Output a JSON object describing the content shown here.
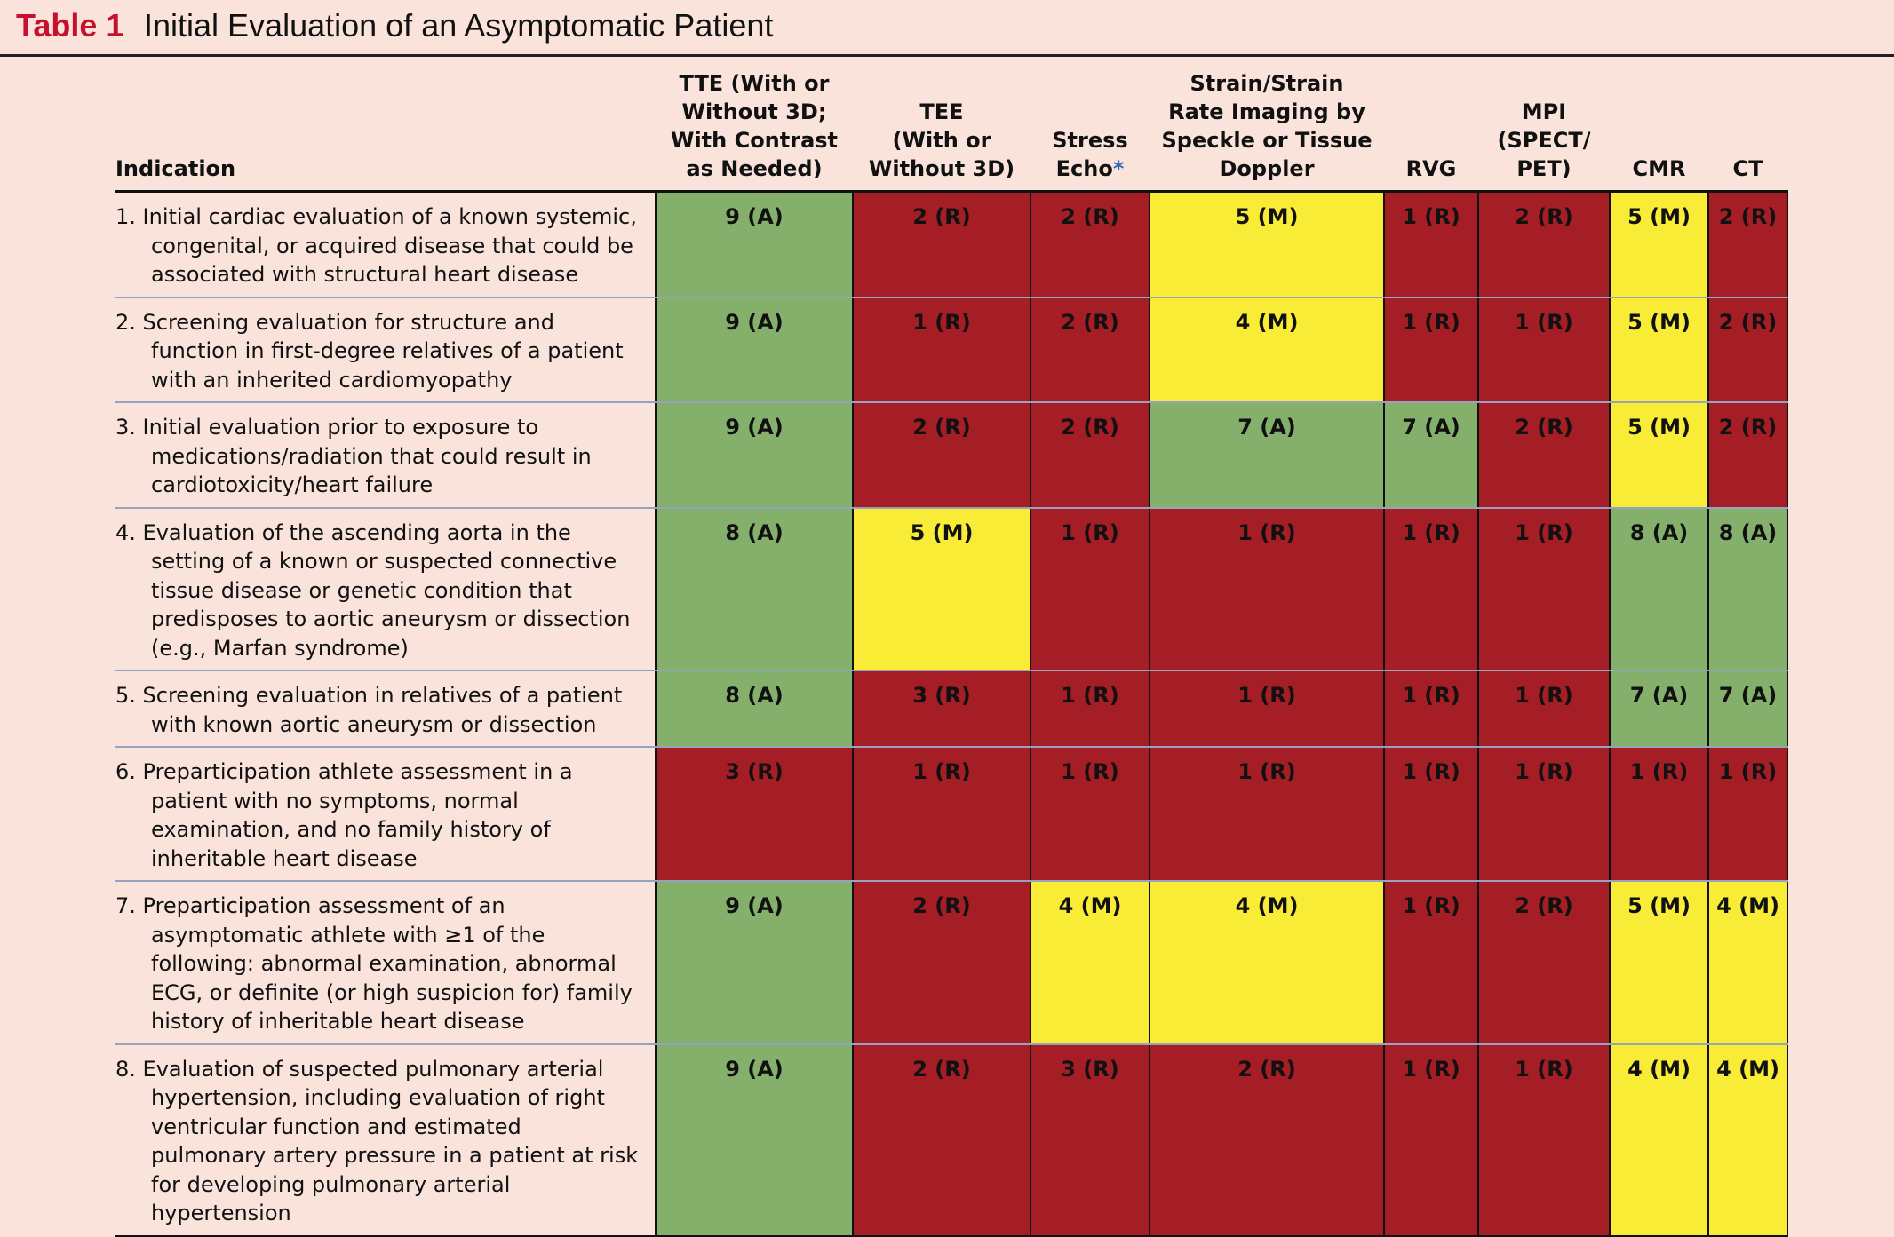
{
  "title": {
    "label": "Table 1",
    "text": "Initial Evaluation of an Asymptomatic Patient"
  },
  "colors": {
    "A": "#84b06c",
    "M": "#f8ec37",
    "R": "#a51d25",
    "title_red": "#c8102e",
    "background": "#fae3db"
  },
  "columns": {
    "indication": "Indication",
    "tte": [
      "TTE (With or",
      "Without 3D;",
      "With Contrast",
      "as Needed)"
    ],
    "tee": [
      "TEE",
      "(With or",
      "Without 3D)"
    ],
    "stress": [
      "Stress",
      "Echo"
    ],
    "stress_mark": "*",
    "strain": [
      "Strain/Strain",
      "Rate Imaging by",
      "Speckle or Tissue",
      "Doppler"
    ],
    "rvg": "RVG",
    "mpi": [
      "MPI",
      "(SPECT/",
      "PET)"
    ],
    "cmr": "CMR",
    "ct": "CT"
  },
  "rows": [
    {
      "indication": "1. Initial cardiac evaluation of a known systemic, congenital, or acquired disease that could be associated with structural heart disease",
      "ratings": [
        {
          "text": "9 (A)",
          "cat": "A"
        },
        {
          "text": "2 (R)",
          "cat": "R"
        },
        {
          "text": "2 (R)",
          "cat": "R"
        },
        {
          "text": "5 (M)",
          "cat": "M"
        },
        {
          "text": "1 (R)",
          "cat": "R"
        },
        {
          "text": "2 (R)",
          "cat": "R"
        },
        {
          "text": "5 (M)",
          "cat": "M"
        },
        {
          "text": "2 (R)",
          "cat": "R"
        }
      ]
    },
    {
      "indication": "2. Screening evaluation for structure and function in first-degree relatives of a patient with an inherited cardiomyopathy",
      "ratings": [
        {
          "text": "9 (A)",
          "cat": "A"
        },
        {
          "text": "1 (R)",
          "cat": "R"
        },
        {
          "text": "2 (R)",
          "cat": "R"
        },
        {
          "text": "4 (M)",
          "cat": "M"
        },
        {
          "text": "1 (R)",
          "cat": "R"
        },
        {
          "text": "1 (R)",
          "cat": "R"
        },
        {
          "text": "5 (M)",
          "cat": "M"
        },
        {
          "text": "2 (R)",
          "cat": "R"
        }
      ]
    },
    {
      "indication": "3. Initial evaluation prior to exposure to medications/radiation that could result in cardiotoxicity/heart failure",
      "ratings": [
        {
          "text": "9 (A)",
          "cat": "A"
        },
        {
          "text": "2 (R)",
          "cat": "R"
        },
        {
          "text": "2 (R)",
          "cat": "R"
        },
        {
          "text": "7 (A)",
          "cat": "A"
        },
        {
          "text": "7 (A)",
          "cat": "A"
        },
        {
          "text": "2 (R)",
          "cat": "R"
        },
        {
          "text": "5 (M)",
          "cat": "M"
        },
        {
          "text": "2 (R)",
          "cat": "R"
        }
      ]
    },
    {
      "indication": "4. Evaluation of the ascending aorta in the setting of a known or suspected connective tissue disease or genetic condition that predisposes to aortic aneurysm or dissection (e.g., Marfan syndrome)",
      "ratings": [
        {
          "text": "8 (A)",
          "cat": "A"
        },
        {
          "text": "5 (M)",
          "cat": "M"
        },
        {
          "text": "1 (R)",
          "cat": "R"
        },
        {
          "text": "1 (R)",
          "cat": "R"
        },
        {
          "text": "1 (R)",
          "cat": "R"
        },
        {
          "text": "1 (R)",
          "cat": "R"
        },
        {
          "text": "8 (A)",
          "cat": "A"
        },
        {
          "text": "8 (A)",
          "cat": "A"
        }
      ]
    },
    {
      "indication": "5. Screening evaluation in relatives of a patient with known aortic aneurysm or dissection",
      "ratings": [
        {
          "text": "8 (A)",
          "cat": "A"
        },
        {
          "text": "3 (R)",
          "cat": "R"
        },
        {
          "text": "1 (R)",
          "cat": "R"
        },
        {
          "text": "1 (R)",
          "cat": "R"
        },
        {
          "text": "1 (R)",
          "cat": "R"
        },
        {
          "text": "1 (R)",
          "cat": "R"
        },
        {
          "text": "7 (A)",
          "cat": "A"
        },
        {
          "text": "7 (A)",
          "cat": "A"
        }
      ]
    },
    {
      "indication": "6. Preparticipation athlete assessment in a patient with no symptoms, normal examination, and no family history of inheritable heart disease",
      "ratings": [
        {
          "text": "3 (R)",
          "cat": "R"
        },
        {
          "text": "1 (R)",
          "cat": "R"
        },
        {
          "text": "1 (R)",
          "cat": "R"
        },
        {
          "text": "1 (R)",
          "cat": "R"
        },
        {
          "text": "1 (R)",
          "cat": "R"
        },
        {
          "text": "1 (R)",
          "cat": "R"
        },
        {
          "text": "1 (R)",
          "cat": "R"
        },
        {
          "text": "1 (R)",
          "cat": "R"
        }
      ]
    },
    {
      "indication": "7. Preparticipation assessment of an asymptomatic athlete with ≥1 of the following: abnormal examination, abnormal ECG, or definite (or high suspicion for) family history of inheritable heart disease",
      "ratings": [
        {
          "text": "9 (A)",
          "cat": "A"
        },
        {
          "text": "2 (R)",
          "cat": "R"
        },
        {
          "text": "4 (M)",
          "cat": "M"
        },
        {
          "text": "4 (M)",
          "cat": "M"
        },
        {
          "text": "1 (R)",
          "cat": "R"
        },
        {
          "text": "2 (R)",
          "cat": "R"
        },
        {
          "text": "5 (M)",
          "cat": "M"
        },
        {
          "text": "4 (M)",
          "cat": "M"
        }
      ]
    },
    {
      "indication": "8. Evaluation of suspected pulmonary arterial hypertension, including evaluation of right ventricular function and estimated pulmonary artery pressure in a patient at risk for developing pulmonary arterial hypertension",
      "ratings": [
        {
          "text": "9 (A)",
          "cat": "A"
        },
        {
          "text": "2 (R)",
          "cat": "R"
        },
        {
          "text": "3 (R)",
          "cat": "R"
        },
        {
          "text": "2 (R)",
          "cat": "R"
        },
        {
          "text": "1 (R)",
          "cat": "R"
        },
        {
          "text": "1 (R)",
          "cat": "R"
        },
        {
          "text": "4 (M)",
          "cat": "M"
        },
        {
          "text": "4 (M)",
          "cat": "M"
        }
      ]
    }
  ]
}
